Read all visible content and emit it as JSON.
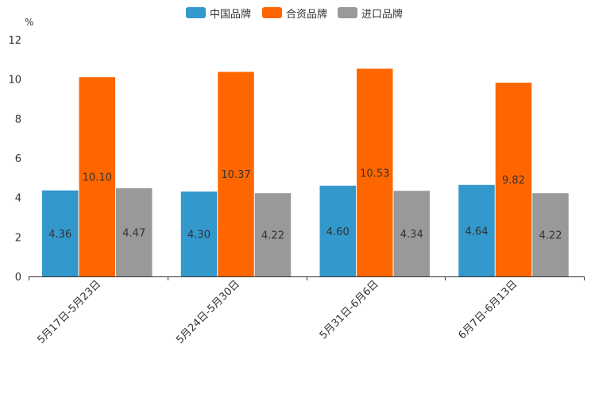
{
  "chart_data": {
    "type": "bar",
    "unit": "%",
    "categories": [
      "5月17日-5月23日",
      "5月24日-5月30日",
      "5月31日-6月6日",
      "6月7日-6月13日"
    ],
    "series": [
      {
        "name": "中国品牌",
        "color": "#3398cc",
        "values": [
          4.36,
          4.3,
          4.6,
          4.64
        ],
        "labels": [
          "4.36",
          "4.30",
          "4.60",
          "4.64"
        ]
      },
      {
        "name": "合资品牌",
        "color": "#ff6600",
        "values": [
          10.1,
          10.37,
          10.53,
          9.82
        ],
        "labels": [
          "10.10",
          "10.37",
          "10.53",
          "9.82"
        ]
      },
      {
        "name": "进口品牌",
        "color": "#999999",
        "values": [
          4.47,
          4.22,
          4.34,
          4.22
        ],
        "labels": [
          "4.47",
          "4.22",
          "4.34",
          "4.22"
        ]
      }
    ],
    "yticks": [
      "0",
      "2",
      "4",
      "6",
      "8",
      "10",
      "12"
    ],
    "ylim": [
      0,
      12
    ],
    "legend_position": "top-center",
    "grid": false
  }
}
